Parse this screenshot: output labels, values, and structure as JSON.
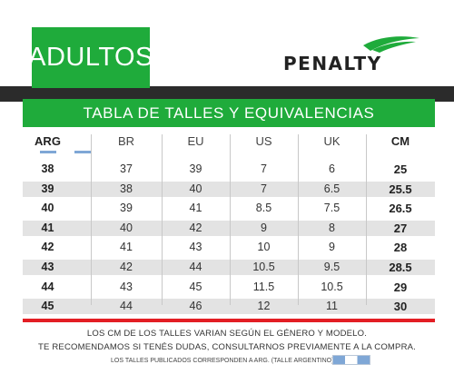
{
  "header": {
    "tab_label": "ADULTOS",
    "brand": "PENALTY"
  },
  "colors": {
    "green": "#1fab3b",
    "dark_band": "#2b2b2b",
    "red_rule": "#e31e24",
    "flag_blue": "#7fa7d6"
  },
  "title": "TABLA DE TALLES Y EQUIVALENCIAS",
  "table": {
    "columns": [
      "ARG",
      "BR",
      "EU",
      "US",
      "UK",
      "CM"
    ],
    "rows": [
      [
        "38",
        "37",
        "39",
        "7",
        "6",
        "25"
      ],
      [
        "39",
        "38",
        "40",
        "7",
        "6.5",
        "25.5"
      ],
      [
        "40",
        "39",
        "41",
        "8.5",
        "7.5",
        "26.5"
      ],
      [
        "41",
        "40",
        "42",
        "9",
        "8",
        "27"
      ],
      [
        "42",
        "41",
        "43",
        "10",
        "9",
        "28"
      ],
      [
        "43",
        "42",
        "44",
        "10.5",
        "9.5",
        "28.5"
      ],
      [
        "44",
        "43",
        "45",
        "11.5",
        "10.5",
        "29"
      ],
      [
        "45",
        "44",
        "46",
        "12",
        "11",
        "30"
      ]
    ]
  },
  "footer": {
    "note1": "LOS CM DE LOS TALLES VARIAN SEGÚN EL GÉNERO Y MODELO.",
    "note2": "TE RECOMENDAMOS SI TENÉS DUDAS, CONSULTARNOS PREVIAMENTE A LA COMPRA.",
    "note3": "LOS TALLES PUBLICADOS CORRESPONDEN A ARG. (TALLE ARGENTINO)"
  }
}
